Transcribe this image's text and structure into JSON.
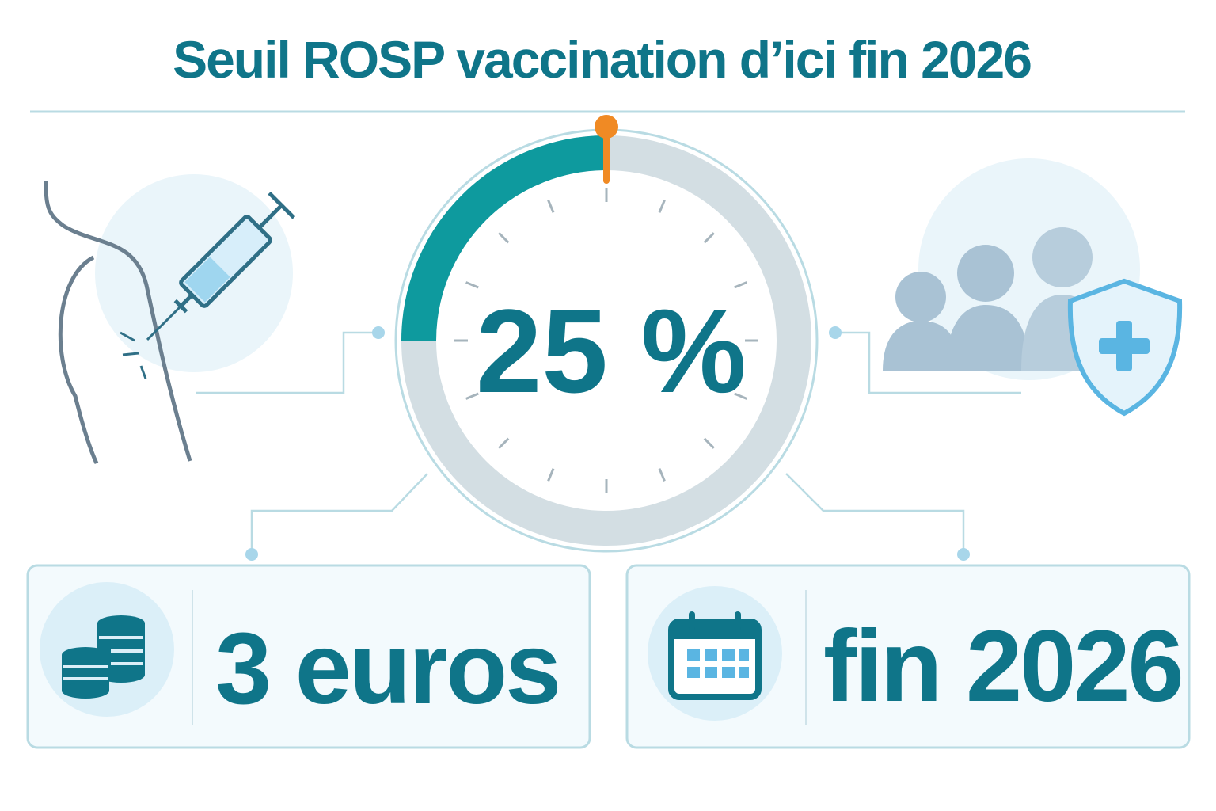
{
  "header": {
    "title": "Seuil ROSP vaccination d’ici fin 2026"
  },
  "gauge": {
    "value": 25,
    "value_label": "25 %",
    "range": [
      0,
      100
    ]
  },
  "cards": [
    {
      "label": "3 euros"
    },
    {
      "label": "fin 2026"
    }
  ]
}
